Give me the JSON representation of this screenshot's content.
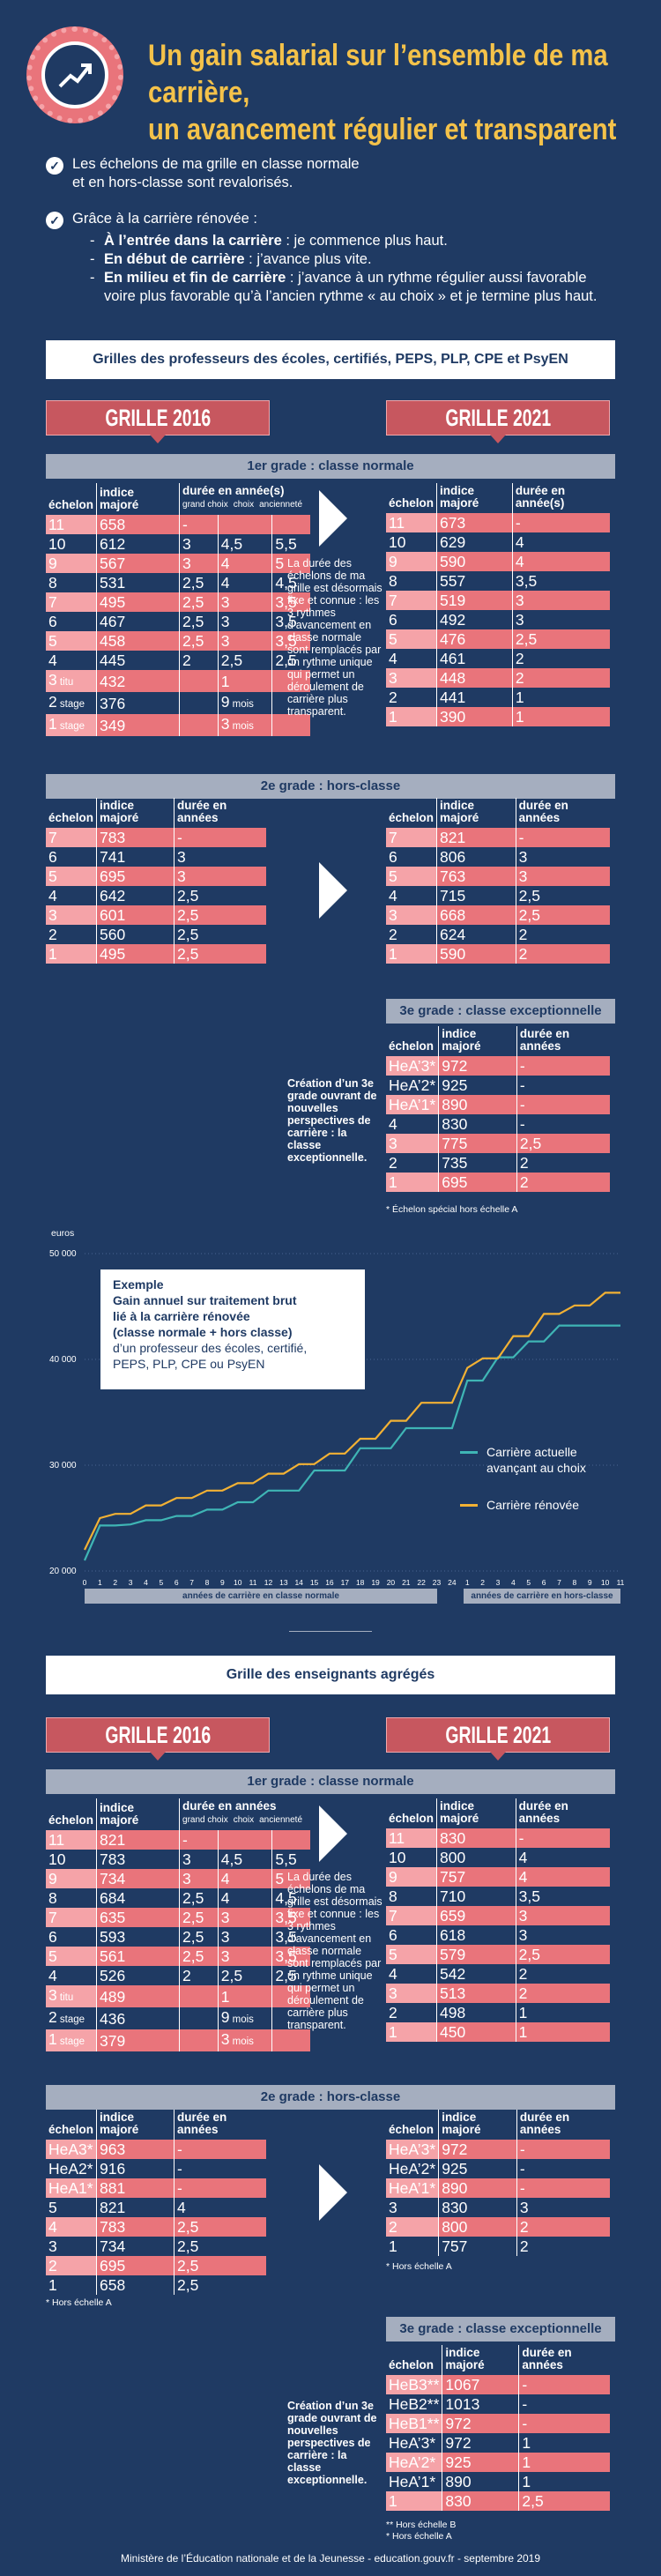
{
  "header": {
    "title_line1": "Un gain salarial sur l’ensemble de ma carrière,",
    "title_line2": "un avancement régulier et transparent"
  },
  "intro": {
    "bullet1_line1": "Les échelons de ma grille en classe normale",
    "bullet1_line2": "et en hors-classe sont revalorisés.",
    "bullet2_title": "Grâce à la carrière rénovée :",
    "item1_bold": "À l’entrée dans la carrière",
    "item1_text": " : je commence plus haut.",
    "item2_bold": "En début de carrière",
    "item2_text": " : j’avance plus vite.",
    "item3_bold": "En milieu et fin de carrière",
    "item3_text": " : j’avance à un rythme régulier aussi favorable",
    "item3_line2": "voire plus favorable qu’à l’ancien rythme « au choix » et je termine plus haut."
  },
  "section1": {
    "title": "Grilles des professeurs des écoles, certifiés, PEPS, PLP, CPE et PsyEN",
    "grille_2016": "GRILLE 2016",
    "grille_2021": "GRILLE 2021",
    "grade1_label": "1er grade : classe normale",
    "grade2_label": "2e grade : hors-classe",
    "grade3_label": "3e grade : classe exceptionnelle",
    "col_echelon": "échelon",
    "col_indice": "indice majoré",
    "col_duree": "durée en année(s)",
    "col_duree_annees": "durée en années",
    "sub_grand_choix": "grand choix",
    "sub_choix": "choix",
    "sub_anciennete": "ancienneté",
    "note_grade1": "La durée des échelons de ma grille est désormais fixe et connue : les 3 rythmes d’avancement en classe normale sont remplacés par un rythme unique qui permet un déroulement de carrière plus transparent.",
    "note_grade3": "Création d’un 3e grade ouvrant de nouvelles perspectives de carrière : la classe exceptionnelle.",
    "footnote_grade3": "* Échelon spécial hors échelle A",
    "g1_2016": [
      [
        "11",
        "658",
        "-",
        "",
        ""
      ],
      [
        "10",
        "612",
        "3",
        "4,5",
        "5,5"
      ],
      [
        "9",
        "567",
        "3",
        "4",
        "5"
      ],
      [
        "8",
        "531",
        "2,5",
        "4",
        "4,5"
      ],
      [
        "7",
        "495",
        "2,5",
        "3",
        "3,5"
      ],
      [
        "6",
        "467",
        "2,5",
        "3",
        "3,5"
      ],
      [
        "5",
        "458",
        "2,5",
        "3",
        "3,5"
      ],
      [
        "4",
        "445",
        "2",
        "2,5",
        "2,5"
      ],
      [
        "3",
        "432",
        "",
        "1",
        ""
      ],
      [
        "2",
        "376",
        "",
        "9",
        ""
      ],
      [
        "1",
        "349",
        "",
        "3",
        ""
      ]
    ],
    "g1_2016_sub": {
      "r8": "titu",
      "r9": "stage",
      "r10": "stage",
      "mois": "mois"
    },
    "g1_2021": [
      [
        "11",
        "673",
        "-"
      ],
      [
        "10",
        "629",
        "4"
      ],
      [
        "9",
        "590",
        "4"
      ],
      [
        "8",
        "557",
        "3,5"
      ],
      [
        "7",
        "519",
        "3"
      ],
      [
        "6",
        "492",
        "3"
      ],
      [
        "5",
        "476",
        "2,5"
      ],
      [
        "4",
        "461",
        "2"
      ],
      [
        "3",
        "448",
        "2"
      ],
      [
        "2",
        "441",
        "1"
      ],
      [
        "1",
        "390",
        "1"
      ]
    ],
    "g2_2016": [
      [
        "7",
        "783",
        "-"
      ],
      [
        "6",
        "741",
        "3"
      ],
      [
        "5",
        "695",
        "3"
      ],
      [
        "4",
        "642",
        "2,5"
      ],
      [
        "3",
        "601",
        "2,5"
      ],
      [
        "2",
        "560",
        "2,5"
      ],
      [
        "1",
        "495",
        "2,5"
      ]
    ],
    "g2_2021": [
      [
        "7",
        "821",
        "-"
      ],
      [
        "6",
        "806",
        "3"
      ],
      [
        "5",
        "763",
        "3"
      ],
      [
        "4",
        "715",
        "2,5"
      ],
      [
        "3",
        "668",
        "2,5"
      ],
      [
        "2",
        "624",
        "2"
      ],
      [
        "1",
        "590",
        "2"
      ]
    ],
    "g3_2021": [
      [
        "HeA’3*",
        "972",
        "-"
      ],
      [
        "HeA’2*",
        "925",
        "-"
      ],
      [
        "HeA’1*",
        "890",
        "-"
      ],
      [
        "4",
        "830",
        "-"
      ],
      [
        "3",
        "775",
        "2,5"
      ],
      [
        "2",
        "735",
        "2"
      ],
      [
        "1",
        "695",
        "2"
      ]
    ]
  },
  "chart": {
    "unit": "euros",
    "y_ticks": [
      "50 000",
      "40 000",
      "30 000",
      "20 000"
    ],
    "x_ticks_a": [
      "0",
      "1",
      "2",
      "3",
      "4",
      "5",
      "6",
      "7",
      "8",
      "9",
      "10",
      "11",
      "12",
      "13",
      "14",
      "15",
      "16",
      "17",
      "18",
      "19",
      "20",
      "21",
      "22",
      "23",
      "24"
    ],
    "x_ticks_b": [
      "1",
      "2",
      "3",
      "4",
      "5",
      "6",
      "7",
      "8",
      "9",
      "10",
      "11"
    ],
    "band_a": "années de carrière en classe normale",
    "band_b": "années de carrière en hors-classe",
    "example_title": "Exemple",
    "example_line1": "Gain annuel sur traitement brut",
    "example_line2": "lié à la carrière rénovée",
    "example_line3": "(classe normale + hors classe)",
    "example_line4": "d’un professeur des écoles, certifié,",
    "example_line5": "PEPS, PLP, CPE ou PsyEN",
    "legend_actuelle_1": "Carrière actuelle",
    "legend_actuelle_2": "avançant au choix",
    "legend_renovee": "Carrière rénovée",
    "color_actuelle": "#3fb5b5",
    "color_renovee": "#f2b134"
  },
  "chart_data": {
    "type": "line",
    "ylabel": "euros",
    "ylim": [
      20000,
      50000
    ],
    "x": [
      "0",
      "1",
      "2",
      "3",
      "4",
      "5",
      "6",
      "7",
      "8",
      "9",
      "10",
      "11",
      "12",
      "13",
      "14",
      "15",
      "16",
      "17",
      "18",
      "19",
      "20",
      "21",
      "22",
      "23",
      "24",
      "HC1",
      "HC2",
      "HC3",
      "HC4",
      "HC5",
      "HC6",
      "HC7",
      "HC8",
      "HC9",
      "HC10",
      "HC11"
    ],
    "series": [
      {
        "name": "Carrière actuelle avançant au choix",
        "values": [
          21000,
          24300,
          24300,
          24400,
          24800,
          24800,
          25200,
          25200,
          25800,
          25800,
          26500,
          26500,
          27600,
          27600,
          27600,
          29500,
          29500,
          29500,
          31600,
          31600,
          31600,
          33500,
          33500,
          33500,
          33500,
          38000,
          38000,
          40200,
          40200,
          41700,
          41700,
          43200,
          43200,
          43200,
          43200,
          43200
        ]
      },
      {
        "name": "Carrière rénovée",
        "values": [
          22000,
          25000,
          25400,
          25400,
          26200,
          26200,
          26900,
          26900,
          27600,
          27600,
          28300,
          28300,
          29200,
          29200,
          30100,
          30100,
          31100,
          31100,
          32500,
          32500,
          34200,
          34200,
          35900,
          35900,
          35900,
          39200,
          40100,
          40100,
          42200,
          42200,
          44300,
          44300,
          45100,
          45100,
          46300,
          46300
        ]
      }
    ]
  },
  "section2": {
    "title": "Grille des enseignants agrégés",
    "grille_2016": "GRILLE 2016",
    "grille_2021": "GRILLE 2021",
    "grade1_label": "1er grade : classe normale",
    "grade2_label": "2e grade : hors-classe",
    "grade3_label": "3e grade : classe exceptionnelle",
    "col_echelon": "échelon",
    "col_indice": "indice majoré",
    "col_duree_annees": "durée en années",
    "sub_grand_choix": "grand choix",
    "sub_choix": "choix",
    "sub_anciennete": "ancienneté",
    "note_grade1": "La durée des échelons de ma grille est désormais fixe et connue : les 3 rythmes d’avancement en classe normale sont remplacés par un rythme unique qui permet un déroulement de carrière plus transparent.",
    "note_grade3": "Création d’un 3e grade ouvrant de nouvelles perspectives de carrière : la classe exceptionnelle.",
    "fn_g2_2016": "* Hors échelle A",
    "fn_g2_2021": "* Hors échelle A",
    "fn_g3_a": "** Hors échelle B",
    "fn_g3_b": "* Hors échelle A",
    "g1_2016": [
      [
        "11",
        "821",
        "-",
        "",
        ""
      ],
      [
        "10",
        "783",
        "3",
        "4,5",
        "5,5"
      ],
      [
        "9",
        "734",
        "3",
        "4",
        "5"
      ],
      [
        "8",
        "684",
        "2,5",
        "4",
        "4,5"
      ],
      [
        "7",
        "635",
        "2,5",
        "3",
        "3,5"
      ],
      [
        "6",
        "593",
        "2,5",
        "3",
        "3,5"
      ],
      [
        "5",
        "561",
        "2,5",
        "3",
        "3,5"
      ],
      [
        "4",
        "526",
        "2",
        "2,5",
        "2,5"
      ],
      [
        "3",
        "489",
        "",
        "1",
        ""
      ],
      [
        "2",
        "436",
        "",
        "9",
        ""
      ],
      [
        "1",
        "379",
        "",
        "3",
        ""
      ]
    ],
    "g1_2021": [
      [
        "11",
        "830",
        "-"
      ],
      [
        "10",
        "800",
        "4"
      ],
      [
        "9",
        "757",
        "4"
      ],
      [
        "8",
        "710",
        "3,5"
      ],
      [
        "7",
        "659",
        "3"
      ],
      [
        "6",
        "618",
        "3"
      ],
      [
        "5",
        "579",
        "2,5"
      ],
      [
        "4",
        "542",
        "2"
      ],
      [
        "3",
        "513",
        "2"
      ],
      [
        "2",
        "498",
        "1"
      ],
      [
        "1",
        "450",
        "1"
      ]
    ],
    "g2_2016": [
      [
        "HeA3*",
        "963",
        "-"
      ],
      [
        "HeA2*",
        "916",
        "-"
      ],
      [
        "HeA1*",
        "881",
        "-"
      ],
      [
        "5",
        "821",
        "4"
      ],
      [
        "4",
        "783",
        "2,5"
      ],
      [
        "3",
        "734",
        "2,5"
      ],
      [
        "2",
        "695",
        "2,5"
      ],
      [
        "1",
        "658",
        "2,5"
      ]
    ],
    "g2_2021": [
      [
        "HeA’3*",
        "972",
        "-"
      ],
      [
        "HeA’2*",
        "925",
        "-"
      ],
      [
        "HeA’1*",
        "890",
        "-"
      ],
      [
        "3",
        "830",
        "3"
      ],
      [
        "2",
        "800",
        "2"
      ],
      [
        "1",
        "757",
        "2"
      ]
    ],
    "g3_2021": [
      [
        "HeB3**",
        "1067",
        "-"
      ],
      [
        "HeB2**",
        "1013",
        "-"
      ],
      [
        "HeB1**",
        "972",
        "-"
      ],
      [
        "HeA’3*",
        "972",
        "1"
      ],
      [
        "HeA’2*",
        "925",
        "1"
      ],
      [
        "HeA’1*",
        "890",
        "1"
      ],
      [
        "1",
        "830",
        "2,5"
      ]
    ]
  },
  "footer": "Ministère de l’Éducation nationale et de la Jeunesse - education.gouv.fr - septembre 2019"
}
